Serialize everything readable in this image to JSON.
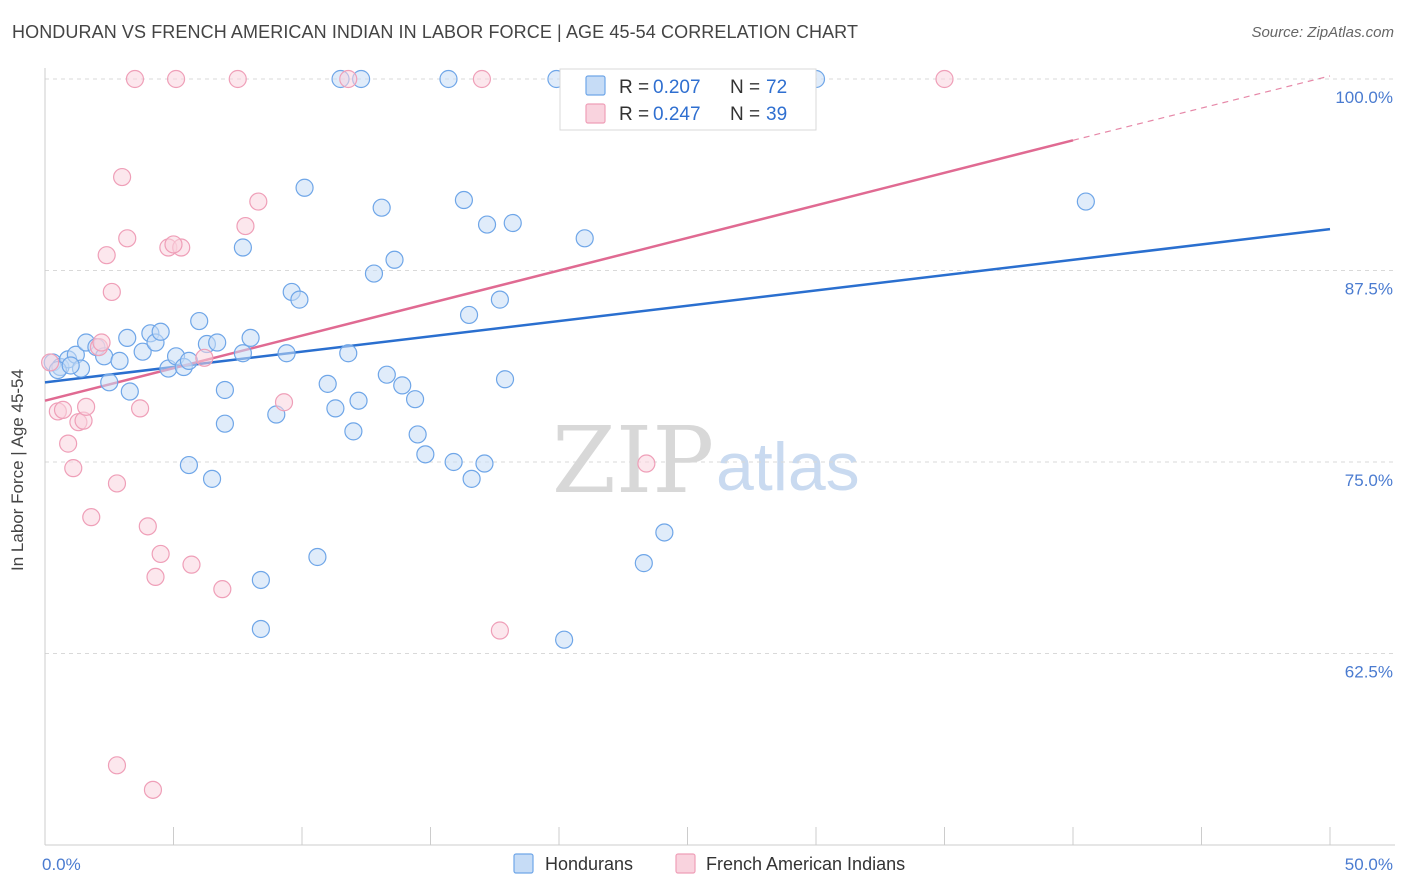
{
  "title": "HONDURAN VS FRENCH AMERICAN INDIAN IN LABOR FORCE | AGE 45-54 CORRELATION CHART",
  "source": "Source: ZipAtlas.com",
  "watermark": {
    "part1": "ZIP",
    "part2": "atlas"
  },
  "colors": {
    "blue": "#6fa6e8",
    "blue_fill": "#c6dcf6",
    "blue_line": "#2a6fcf",
    "pink": "#ef9fb8",
    "pink_fill": "#f9d3de",
    "pink_line": "#e06a92",
    "axis_text": "#4a7bd0",
    "grid": "#d9d9d9"
  },
  "legend": {
    "rows": [
      {
        "r_label": "R =",
        "r_value": "0.207",
        "n_label": "N =",
        "n_value": "72",
        "color": "blue"
      },
      {
        "r_label": "R =",
        "r_value": "0.247",
        "n_label": "N =",
        "n_value": "39",
        "color": "pink"
      }
    ]
  },
  "chart_data": {
    "type": "scatter",
    "xlabel": "",
    "ylabel": "In Labor Force | Age 45-54",
    "xlim": [
      0,
      50
    ],
    "ylim": [
      50,
      100
    ],
    "x_tick_labels": [
      {
        "value": 0,
        "label": "0.0%"
      },
      {
        "value": 50,
        "label": "50.0%"
      }
    ],
    "y_tick_labels": [
      {
        "value": 100,
        "label": "100.0%"
      },
      {
        "value": 87.5,
        "label": "87.5%"
      },
      {
        "value": 75,
        "label": "75.0%"
      },
      {
        "value": 62.5,
        "label": "62.5%"
      }
    ],
    "grid": "horizontal dashed",
    "legend_placement": "top-center",
    "series": [
      {
        "name": "Hondurans",
        "color": "blue",
        "trend": {
          "x0": 0,
          "y0": 80.2,
          "x1": 50,
          "y1": 90.2
        },
        "points": [
          [
            0.3,
            81.5
          ],
          [
            0.6,
            81.2
          ],
          [
            0.9,
            81.7
          ],
          [
            1.2,
            82.0
          ],
          [
            1.4,
            81.1
          ],
          [
            1.6,
            82.8
          ],
          [
            2.0,
            82.5
          ],
          [
            2.3,
            81.9
          ],
          [
            2.5,
            80.2
          ],
          [
            2.9,
            81.6
          ],
          [
            3.2,
            83.1
          ],
          [
            3.3,
            79.6
          ],
          [
            3.8,
            82.2
          ],
          [
            4.1,
            83.4
          ],
          [
            4.3,
            82.8
          ],
          [
            4.5,
            83.5
          ],
          [
            4.8,
            81.1
          ],
          [
            5.1,
            81.9
          ],
          [
            5.4,
            81.2
          ],
          [
            5.6,
            81.6
          ],
          [
            6.0,
            84.2
          ],
          [
            6.3,
            82.7
          ],
          [
            6.7,
            82.8
          ],
          [
            7.0,
            79.7
          ],
          [
            5.6,
            74.8
          ],
          [
            6.5,
            73.9
          ],
          [
            7.0,
            77.5
          ],
          [
            7.7,
            89.0
          ],
          [
            7.7,
            82.1
          ],
          [
            8.0,
            83.1
          ],
          [
            8.4,
            67.3
          ],
          [
            8.4,
            64.1
          ],
          [
            9.0,
            78.1
          ],
          [
            9.4,
            82.1
          ],
          [
            9.6,
            86.1
          ],
          [
            9.9,
            85.6
          ],
          [
            10.1,
            92.9
          ],
          [
            10.6,
            68.8
          ],
          [
            11.0,
            80.1
          ],
          [
            11.3,
            78.5
          ],
          [
            11.5,
            100.0
          ],
          [
            11.8,
            82.1
          ],
          [
            12.0,
            77.0
          ],
          [
            12.2,
            79.0
          ],
          [
            12.3,
            100.0
          ],
          [
            12.8,
            87.3
          ],
          [
            13.1,
            91.6
          ],
          [
            13.3,
            80.7
          ],
          [
            13.6,
            88.2
          ],
          [
            13.9,
            80.0
          ],
          [
            14.4,
            79.1
          ],
          [
            14.5,
            76.8
          ],
          [
            14.8,
            75.5
          ],
          [
            15.7,
            100.0
          ],
          [
            15.9,
            75.0
          ],
          [
            16.3,
            92.1
          ],
          [
            16.5,
            84.6
          ],
          [
            16.6,
            73.9
          ],
          [
            17.1,
            74.9
          ],
          [
            17.2,
            90.5
          ],
          [
            17.7,
            85.6
          ],
          [
            17.9,
            80.4
          ],
          [
            18.2,
            90.6
          ],
          [
            19.9,
            100.0
          ],
          [
            20.2,
            63.4
          ],
          [
            21.0,
            89.6
          ],
          [
            23.3,
            68.4
          ],
          [
            24.1,
            70.4
          ],
          [
            30.0,
            100.0
          ],
          [
            40.5,
            92.0
          ],
          [
            0.5,
            81.0
          ],
          [
            1.0,
            81.3
          ]
        ]
      },
      {
        "name": "French American Indians",
        "color": "pink",
        "trend": {
          "x0": 0,
          "y0": 79.0,
          "x1": 40,
          "y1": 96.0,
          "dash_x1": 50,
          "dash_y1": 100.2
        },
        "points": [
          [
            0.2,
            81.5
          ],
          [
            0.5,
            78.3
          ],
          [
            0.7,
            78.4
          ],
          [
            0.9,
            76.2
          ],
          [
            1.1,
            74.6
          ],
          [
            1.3,
            77.6
          ],
          [
            1.5,
            77.7
          ],
          [
            1.6,
            78.6
          ],
          [
            1.8,
            71.4
          ],
          [
            2.1,
            82.5
          ],
          [
            2.2,
            82.8
          ],
          [
            2.4,
            88.5
          ],
          [
            2.6,
            86.1
          ],
          [
            2.8,
            73.6
          ],
          [
            3.0,
            93.6
          ],
          [
            3.2,
            89.6
          ],
          [
            3.5,
            100.0
          ],
          [
            3.7,
            78.5
          ],
          [
            4.0,
            70.8
          ],
          [
            4.3,
            67.5
          ],
          [
            4.5,
            69.0
          ],
          [
            4.8,
            89.0
          ],
          [
            5.1,
            100.0
          ],
          [
            5.3,
            89.0
          ],
          [
            5.7,
            68.3
          ],
          [
            6.2,
            81.8
          ],
          [
            6.9,
            66.7
          ],
          [
            7.5,
            100.0
          ],
          [
            7.8,
            90.4
          ],
          [
            8.3,
            92.0
          ],
          [
            9.3,
            78.9
          ],
          [
            11.8,
            100.0
          ],
          [
            17.0,
            100.0
          ],
          [
            17.7,
            64.0
          ],
          [
            23.4,
            74.9
          ],
          [
            35.0,
            100.0
          ],
          [
            2.8,
            55.2
          ],
          [
            4.2,
            53.6
          ],
          [
            5.0,
            89.2
          ]
        ]
      }
    ]
  },
  "bottom_legend": [
    {
      "label": "Hondurans",
      "color": "blue"
    },
    {
      "label": "French American Indians",
      "color": "pink"
    }
  ]
}
